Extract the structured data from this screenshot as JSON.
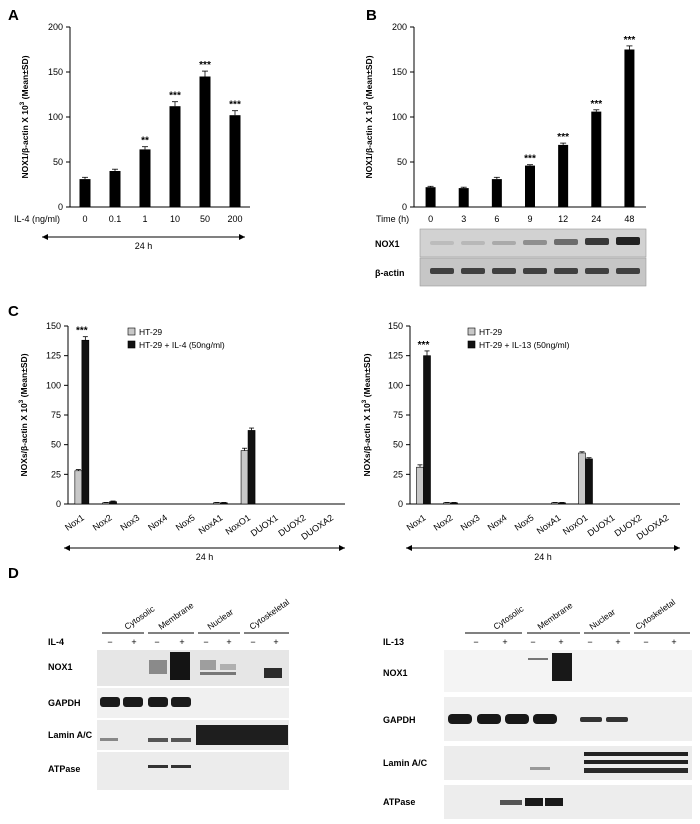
{
  "panels": {
    "A": "A",
    "B": "B",
    "C": "C",
    "D": "D"
  },
  "chart_data": [
    {
      "id": "A",
      "type": "bar",
      "ylabel": "NOX1/β-actin X 10",
      "ylabel_sup": "3",
      "ylabel_suffix": "(Mean±SD)",
      "x_axis_title": "IL-4 (ng/ml)",
      "categories": [
        "0",
        "0.1",
        "1",
        "10",
        "50",
        "200"
      ],
      "values": [
        31,
        40,
        64,
        112,
        145,
        102
      ],
      "errors": [
        2,
        2,
        3,
        5,
        6,
        5
      ],
      "significance": [
        "",
        "",
        "**",
        "***",
        "***",
        "***"
      ],
      "ylim": [
        0,
        200
      ],
      "yticks": [
        "0",
        "50",
        "100",
        "150",
        "200"
      ],
      "duration": "24 h"
    },
    {
      "id": "B",
      "type": "bar",
      "ylabel": "NOX1/β-actin X 10",
      "ylabel_sup": "3",
      "ylabel_suffix": "(Mean±SD)",
      "x_axis_title": "Time (h)",
      "categories": [
        "0",
        "3",
        "6",
        "9",
        "12",
        "24",
        "48"
      ],
      "values": [
        22,
        21,
        31,
        46,
        69,
        106,
        175
      ],
      "errors": [
        1,
        1,
        2,
        1,
        2,
        2,
        4
      ],
      "significance": [
        "",
        "",
        "",
        "***",
        "***",
        "***",
        "***"
      ],
      "ylim": [
        0,
        200
      ],
      "yticks": [
        "0",
        "50",
        "100",
        "150",
        "200"
      ]
    },
    {
      "id": "C-left",
      "type": "bar",
      "ylabel": "NOXs/β-actin X 10",
      "ylabel_sup": "3",
      "ylabel_suffix": "(Mean±SD)",
      "categories": [
        "Nox1",
        "Nox2",
        "Nox3",
        "Nox4",
        "Nox5",
        "NoxA1",
        "NoxO1",
        "DUOX1",
        "DUOX2",
        "DUOXA2"
      ],
      "series": [
        {
          "name": "HT-29",
          "color": "#c8c8c8",
          "values": [
            28,
            1,
            0,
            0,
            0,
            1,
            45,
            0,
            0,
            0
          ],
          "errors": [
            1,
            0.3,
            0,
            0,
            0,
            0.3,
            2,
            0,
            0,
            0
          ]
        },
        {
          "name": "HT-29 + IL-4 (50ng/ml)",
          "color": "#111111",
          "values": [
            138,
            2,
            0,
            0,
            0,
            1,
            62,
            0,
            0,
            0
          ],
          "errors": [
            3,
            0.5,
            0,
            0,
            0,
            0.3,
            2,
            0,
            0,
            0
          ]
        }
      ],
      "significance": [
        "***",
        "",
        "",
        "",
        "",
        "",
        "",
        "",
        "",
        ""
      ],
      "ylim": [
        0,
        150
      ],
      "yticks": [
        "0",
        "25",
        "50",
        "75",
        "100",
        "125",
        "150"
      ],
      "duration": "24 h"
    },
    {
      "id": "C-right",
      "type": "bar",
      "ylabel": "NOXs/β-actin X 10",
      "ylabel_sup": "3",
      "ylabel_suffix": "(Mean±SD)",
      "categories": [
        "Nox1",
        "Nox2",
        "Nox3",
        "Nox4",
        "Nox5",
        "NoxA1",
        "NoxO1",
        "DUOX1",
        "DUOX2",
        "DUOXA2"
      ],
      "series": [
        {
          "name": "HT-29",
          "color": "#c8c8c8",
          "values": [
            31,
            1,
            0,
            0,
            0,
            1,
            43,
            0,
            0,
            0
          ],
          "errors": [
            2,
            0.3,
            0,
            0,
            0,
            0.3,
            1,
            0,
            0,
            0
          ]
        },
        {
          "name": "HT-29 + IL-13 (50ng/ml)",
          "color": "#111111",
          "values": [
            125,
            1,
            0,
            0,
            0,
            1,
            38,
            0,
            0,
            0
          ],
          "errors": [
            4,
            0.3,
            0,
            0,
            0,
            0.3,
            1,
            0,
            0,
            0
          ]
        }
      ],
      "significance": [
        "***",
        "",
        "",
        "",
        "",
        "",
        "",
        "",
        "",
        ""
      ],
      "ylim": [
        0,
        150
      ],
      "yticks": [
        "0",
        "25",
        "50",
        "75",
        "100",
        "125",
        "150"
      ],
      "duration": "24 h"
    }
  ],
  "blot_B": {
    "rows": [
      "NOX1",
      "β-actin"
    ]
  },
  "blot_D": {
    "fractions": [
      "Cytosolic",
      "Membrane",
      "Nuclear",
      "Cytoskeletal"
    ],
    "minus": "−",
    "plus": "+",
    "left": {
      "treatment": "IL-4",
      "rows": [
        "NOX1",
        "GAPDH",
        "Lamin A/C",
        "ATPase"
      ]
    },
    "right": {
      "treatment": "IL-13",
      "rows": [
        "NOX1",
        "GAPDH",
        "Lamin A/C",
        "ATPase"
      ]
    }
  }
}
